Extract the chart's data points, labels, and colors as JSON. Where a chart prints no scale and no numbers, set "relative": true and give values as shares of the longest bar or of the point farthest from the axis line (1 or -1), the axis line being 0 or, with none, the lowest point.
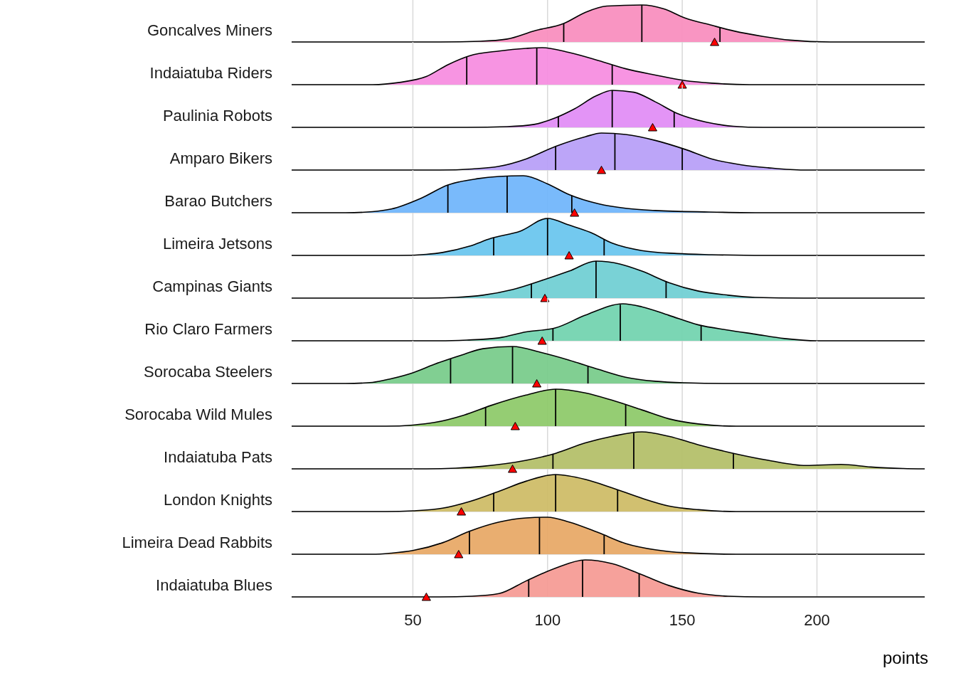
{
  "chart_data": [
    {
      "type": "area",
      "ylabel": "Goncalves Miners",
      "relative": true,
      "xlim": [
        5,
        240
      ],
      "xticks": [
        50,
        100,
        150,
        200
      ],
      "grid": "x",
      "tick_labels": false,
      "ref_lines": [
        {
          "axis": "x",
          "value": 106,
          "color": "#000000"
        },
        {
          "axis": "x",
          "value": 135,
          "color": "#000000"
        },
        {
          "axis": "x",
          "value": 164,
          "color": "#000000"
        }
      ],
      "series": [
        {
          "type": "area",
          "color": "#f98fbf",
          "x": [
            5,
            60,
            75,
            85,
            95,
            106,
            114,
            122,
            135,
            143,
            151,
            161,
            169,
            180,
            190,
            205,
            240
          ],
          "values": [
            0,
            0,
            0.02,
            0.08,
            0.3,
            0.5,
            0.8,
            0.97,
            1,
            0.9,
            0.65,
            0.45,
            0.3,
            0.15,
            0.05,
            0,
            0
          ]
        },
        {
          "type": "scatter",
          "color": "#ff0000",
          "marker": "triangle",
          "x": [
            162
          ],
          "values": [
            0
          ]
        }
      ]
    },
    {
      "type": "area",
      "ylabel": "Indaiatuba Riders",
      "relative": true,
      "xlim": [
        5,
        240
      ],
      "xticks": [
        50,
        100,
        150,
        200
      ],
      "grid": "x",
      "tick_labels": false,
      "ref_lines": [
        {
          "axis": "x",
          "value": 70,
          "color": "#000000"
        },
        {
          "axis": "x",
          "value": 96,
          "color": "#000000"
        },
        {
          "axis": "x",
          "value": 124,
          "color": "#000000"
        }
      ],
      "series": [
        {
          "type": "area",
          "color": "#f78ee0",
          "x": [
            5,
            35,
            45,
            55,
            63,
            71,
            82,
            92,
            98,
            108,
            119,
            129,
            140,
            151,
            161,
            175,
            240
          ],
          "values": [
            0,
            0,
            0.06,
            0.22,
            0.54,
            0.78,
            0.91,
            0.98,
            1,
            0.87,
            0.65,
            0.43,
            0.26,
            0.11,
            0.04,
            0,
            0
          ]
        },
        {
          "type": "scatter",
          "color": "#ff0000",
          "marker": "triangle",
          "x": [
            150
          ],
          "values": [
            0
          ]
        }
      ]
    },
    {
      "type": "area",
      "ylabel": "Paulinia Robots",
      "relative": true,
      "xlim": [
        5,
        240
      ],
      "xticks": [
        50,
        100,
        150,
        200
      ],
      "grid": "x",
      "tick_labels": false,
      "ref_lines": [
        {
          "axis": "x",
          "value": 104,
          "color": "#000000"
        },
        {
          "axis": "x",
          "value": 124,
          "color": "#000000"
        },
        {
          "axis": "x",
          "value": 147,
          "color": "#000000"
        }
      ],
      "series": [
        {
          "type": "area",
          "color": "#e28ef5",
          "x": [
            5,
            70,
            85,
            95,
            103,
            110,
            118,
            124,
            132,
            140,
            148,
            159,
            169,
            180,
            240
          ],
          "values": [
            0,
            0,
            0.02,
            0.08,
            0.26,
            0.5,
            0.85,
            1,
            0.95,
            0.69,
            0.38,
            0.14,
            0.03,
            0,
            0
          ]
        },
        {
          "type": "scatter",
          "color": "#ff0000",
          "marker": "triangle",
          "x": [
            139
          ],
          "values": [
            0
          ]
        }
      ]
    },
    {
      "type": "area",
      "ylabel": "Amparo Bikers",
      "relative": true,
      "xlim": [
        5,
        240
      ],
      "xticks": [
        50,
        100,
        150,
        200
      ],
      "grid": "x",
      "tick_labels": false,
      "ref_lines": [
        {
          "axis": "x",
          "value": 103,
          "color": "#000000"
        },
        {
          "axis": "x",
          "value": 125,
          "color": "#000000"
        },
        {
          "axis": "x",
          "value": 150,
          "color": "#000000"
        }
      ],
      "series": [
        {
          "type": "area",
          "color": "#b8a0f8",
          "x": [
            5,
            60,
            72,
            82,
            92,
            103,
            114,
            120,
            129,
            140,
            151,
            161,
            172,
            182,
            195,
            240
          ],
          "values": [
            0,
            0,
            0.03,
            0.1,
            0.3,
            0.64,
            0.9,
            1,
            0.96,
            0.8,
            0.56,
            0.3,
            0.14,
            0.06,
            0,
            0
          ]
        },
        {
          "type": "scatter",
          "color": "#ff0000",
          "marker": "triangle",
          "x": [
            120
          ],
          "values": [
            0
          ]
        }
      ]
    },
    {
      "type": "area",
      "ylabel": "Barao Butchers",
      "relative": true,
      "xlim": [
        5,
        240
      ],
      "xticks": [
        50,
        100,
        150,
        200
      ],
      "grid": "x",
      "tick_labels": false,
      "ref_lines": [
        {
          "axis": "x",
          "value": 63,
          "color": "#000000"
        },
        {
          "axis": "x",
          "value": 85,
          "color": "#000000"
        },
        {
          "axis": "x",
          "value": 109,
          "color": "#000000"
        }
      ],
      "series": [
        {
          "type": "area",
          "color": "#72b6fb",
          "x": [
            5,
            25,
            35,
            42,
            53,
            63,
            74,
            82,
            91,
            100,
            108,
            119,
            129,
            140,
            160,
            180,
            240
          ],
          "values": [
            0,
            0,
            0.03,
            0.1,
            0.39,
            0.75,
            0.92,
            0.98,
            1,
            0.78,
            0.49,
            0.24,
            0.12,
            0.06,
            0.02,
            0,
            0
          ]
        },
        {
          "type": "scatter",
          "color": "#ff0000",
          "marker": "triangle",
          "x": [
            110
          ],
          "values": [
            0
          ]
        }
      ]
    },
    {
      "type": "area",
      "ylabel": "Limeira Jetsons",
      "relative": true,
      "xlim": [
        5,
        240
      ],
      "xticks": [
        50,
        100,
        150,
        200
      ],
      "grid": "x",
      "tick_labels": false,
      "ref_lines": [
        {
          "axis": "x",
          "value": 80,
          "color": "#000000"
        },
        {
          "axis": "x",
          "value": 100,
          "color": "#000000"
        },
        {
          "axis": "x",
          "value": 121,
          "color": "#000000"
        }
      ],
      "series": [
        {
          "type": "area",
          "color": "#6cc6ee",
          "x": [
            5,
            45,
            55,
            61,
            71,
            79,
            90,
            100,
            108,
            116,
            124,
            135,
            148,
            161,
            180,
            240
          ],
          "values": [
            0,
            0,
            0.03,
            0.08,
            0.25,
            0.46,
            0.66,
            1,
            0.82,
            0.62,
            0.33,
            0.13,
            0.05,
            0.02,
            0,
            0
          ]
        },
        {
          "type": "scatter",
          "color": "#ff0000",
          "marker": "triangle",
          "x": [
            108
          ],
          "values": [
            0
          ]
        }
      ]
    },
    {
      "type": "area",
      "ylabel": "Campinas Giants",
      "relative": true,
      "xlim": [
        5,
        240
      ],
      "xticks": [
        50,
        100,
        150,
        200
      ],
      "grid": "x",
      "tick_labels": false,
      "ref_lines": [
        {
          "axis": "x",
          "value": 94,
          "color": "#000000"
        },
        {
          "axis": "x",
          "value": 118,
          "color": "#000000"
        },
        {
          "axis": "x",
          "value": 144,
          "color": "#000000"
        }
      ],
      "series": [
        {
          "type": "area",
          "color": "#72d0d4",
          "x": [
            5,
            55,
            66,
            76,
            87,
            98,
            108,
            118,
            127,
            135,
            145,
            156,
            167,
            177,
            195,
            240
          ],
          "values": [
            0,
            0,
            0.02,
            0.08,
            0.23,
            0.48,
            0.73,
            1,
            0.92,
            0.73,
            0.42,
            0.19,
            0.08,
            0.02,
            0,
            0
          ]
        },
        {
          "type": "scatter",
          "color": "#ff0000",
          "marker": "triangle",
          "x": [
            99
          ],
          "values": [
            0
          ]
        }
      ]
    },
    {
      "type": "area",
      "ylabel": "Rio Claro Farmers",
      "relative": true,
      "xlim": [
        5,
        240
      ],
      "xticks": [
        50,
        100,
        150,
        200
      ],
      "grid": "x",
      "tick_labels": false,
      "ref_lines": [
        {
          "axis": "x",
          "value": 102,
          "color": "#000000"
        },
        {
          "axis": "x",
          "value": 127,
          "color": "#000000"
        },
        {
          "axis": "x",
          "value": 157,
          "color": "#000000"
        }
      ],
      "series": [
        {
          "type": "area",
          "color": "#74d4b0",
          "x": [
            5,
            60,
            70,
            82,
            92,
            103,
            114,
            128,
            135,
            145,
            156,
            167,
            177,
            188,
            200,
            240
          ],
          "values": [
            0,
            0,
            0.02,
            0.08,
            0.24,
            0.35,
            0.69,
            1,
            0.92,
            0.69,
            0.43,
            0.29,
            0.18,
            0.06,
            0,
            0
          ]
        },
        {
          "type": "scatter",
          "color": "#ff0000",
          "marker": "triangle",
          "x": [
            98
          ],
          "values": [
            0
          ]
        }
      ]
    },
    {
      "type": "area",
      "ylabel": "Sorocaba Steelers",
      "relative": true,
      "xlim": [
        5,
        240
      ],
      "xticks": [
        50,
        100,
        150,
        200
      ],
      "grid": "x",
      "tick_labels": false,
      "ref_lines": [
        {
          "axis": "x",
          "value": 64,
          "color": "#000000"
        },
        {
          "axis": "x",
          "value": 87,
          "color": "#000000"
        },
        {
          "axis": "x",
          "value": 115,
          "color": "#000000"
        }
      ],
      "series": [
        {
          "type": "area",
          "color": "#7acc8c",
          "x": [
            5,
            25,
            35,
            42,
            50,
            58,
            69,
            76,
            87,
            98,
            108,
            119,
            129,
            140,
            151,
            170,
            240
          ],
          "values": [
            0,
            0,
            0.03,
            0.13,
            0.29,
            0.52,
            0.79,
            0.94,
            1,
            0.83,
            0.63,
            0.38,
            0.17,
            0.06,
            0.02,
            0,
            0
          ]
        },
        {
          "type": "scatter",
          "color": "#ff0000",
          "marker": "triangle",
          "x": [
            96
          ],
          "values": [
            0
          ]
        }
      ]
    },
    {
      "type": "area",
      "ylabel": "Sorocaba Wild Mules",
      "relative": true,
      "xlim": [
        5,
        240
      ],
      "xticks": [
        50,
        100,
        150,
        200
      ],
      "grid": "x",
      "tick_labels": false,
      "ref_lines": [
        {
          "axis": "x",
          "value": 77,
          "color": "#000000"
        },
        {
          "axis": "x",
          "value": 103,
          "color": "#000000"
        },
        {
          "axis": "x",
          "value": 129,
          "color": "#000000"
        }
      ],
      "series": [
        {
          "type": "area",
          "color": "#8fca6c",
          "x": [
            5,
            40,
            50,
            58,
            69,
            79,
            92,
            103,
            114,
            124,
            135,
            145,
            156,
            170,
            240
          ],
          "values": [
            0,
            0,
            0.03,
            0.1,
            0.3,
            0.56,
            0.84,
            1,
            0.9,
            0.7,
            0.44,
            0.2,
            0.06,
            0,
            0
          ]
        },
        {
          "type": "scatter",
          "color": "#ff0000",
          "marker": "triangle",
          "x": [
            88
          ],
          "values": [
            0
          ]
        }
      ]
    },
    {
      "type": "area",
      "ylabel": "Indaiatuba Pats",
      "relative": true,
      "xlim": [
        5,
        240
      ],
      "xticks": [
        50,
        100,
        150,
        200
      ],
      "grid": "x",
      "tick_labels": false,
      "ref_lines": [
        {
          "axis": "x",
          "value": 102,
          "color": "#000000"
        },
        {
          "axis": "x",
          "value": 132,
          "color": "#000000"
        },
        {
          "axis": "x",
          "value": 169,
          "color": "#000000"
        }
      ],
      "series": [
        {
          "type": "area",
          "color": "#b4c06a",
          "x": [
            5,
            55,
            66,
            76,
            92,
            103,
            114,
            124,
            135,
            145,
            156,
            169,
            182,
            196,
            209,
            220,
            232,
            240
          ],
          "values": [
            0,
            0,
            0.02,
            0.07,
            0.23,
            0.42,
            0.7,
            0.88,
            1,
            0.88,
            0.65,
            0.42,
            0.23,
            0.09,
            0.12,
            0.05,
            0.01,
            0
          ]
        },
        {
          "type": "scatter",
          "color": "#ff0000",
          "marker": "triangle",
          "x": [
            87
          ],
          "values": [
            0
          ]
        }
      ]
    },
    {
      "type": "area",
      "ylabel": "London Knights",
      "relative": true,
      "xlim": [
        5,
        240
      ],
      "xticks": [
        50,
        100,
        150,
        200
      ],
      "grid": "x",
      "tick_labels": false,
      "ref_lines": [
        {
          "axis": "x",
          "value": 80,
          "color": "#000000"
        },
        {
          "axis": "x",
          "value": 103,
          "color": "#000000"
        },
        {
          "axis": "x",
          "value": 126,
          "color": "#000000"
        }
      ],
      "series": [
        {
          "type": "area",
          "color": "#cfbd68",
          "x": [
            5,
            40,
            50,
            61,
            71,
            82,
            92,
            103,
            114,
            124,
            135,
            145,
            156,
            170,
            240
          ],
          "values": [
            0,
            0,
            0.02,
            0.09,
            0.27,
            0.55,
            0.82,
            1,
            0.87,
            0.64,
            0.36,
            0.15,
            0.05,
            0,
            0
          ]
        },
        {
          "type": "scatter",
          "color": "#ff0000",
          "marker": "triangle",
          "x": [
            68
          ],
          "values": [
            0
          ]
        }
      ]
    },
    {
      "type": "area",
      "ylabel": "Limeira Dead Rabbits",
      "relative": true,
      "xlim": [
        5,
        240
      ],
      "xticks": [
        50,
        100,
        150,
        200
      ],
      "grid": "x",
      "tick_labels": false,
      "ref_lines": [
        {
          "axis": "x",
          "value": 71,
          "color": "#000000"
        },
        {
          "axis": "x",
          "value": 97,
          "color": "#000000"
        },
        {
          "axis": "x",
          "value": 121,
          "color": "#000000"
        }
      ],
      "series": [
        {
          "type": "area",
          "color": "#e8aa68",
          "x": [
            5,
            35,
            42,
            50,
            61,
            71,
            82,
            92,
            100,
            108,
            119,
            129,
            140,
            151,
            170,
            240
          ],
          "values": [
            0,
            0,
            0.03,
            0.1,
            0.31,
            0.62,
            0.87,
            0.98,
            1,
            0.87,
            0.58,
            0.29,
            0.12,
            0.04,
            0,
            0
          ]
        },
        {
          "type": "scatter",
          "color": "#ff0000",
          "marker": "triangle",
          "x": [
            67
          ],
          "values": [
            0
          ]
        }
      ]
    },
    {
      "type": "area",
      "ylabel": "Indaiatuba Blues",
      "xlabel": "points",
      "relative": true,
      "xlim": [
        5,
        240
      ],
      "xticks": [
        50,
        100,
        150,
        200
      ],
      "grid": "x",
      "tick_labels": "x",
      "ref_lines": [
        {
          "axis": "x",
          "value": 93,
          "color": "#000000"
        },
        {
          "axis": "x",
          "value": 113,
          "color": "#000000"
        },
        {
          "axis": "x",
          "value": 134,
          "color": "#000000"
        }
      ],
      "series": [
        {
          "type": "area",
          "color": "#f59c96",
          "x": [
            5,
            60,
            72,
            82,
            92,
            103,
            114,
            124,
            135,
            145,
            156,
            167,
            180,
            240
          ],
          "values": [
            0,
            0,
            0.02,
            0.09,
            0.43,
            0.78,
            1,
            0.9,
            0.6,
            0.31,
            0.1,
            0.02,
            0,
            0
          ]
        },
        {
          "type": "scatter",
          "color": "#ff0000",
          "marker": "triangle",
          "x": [
            55
          ],
          "values": [
            0
          ]
        }
      ]
    }
  ]
}
